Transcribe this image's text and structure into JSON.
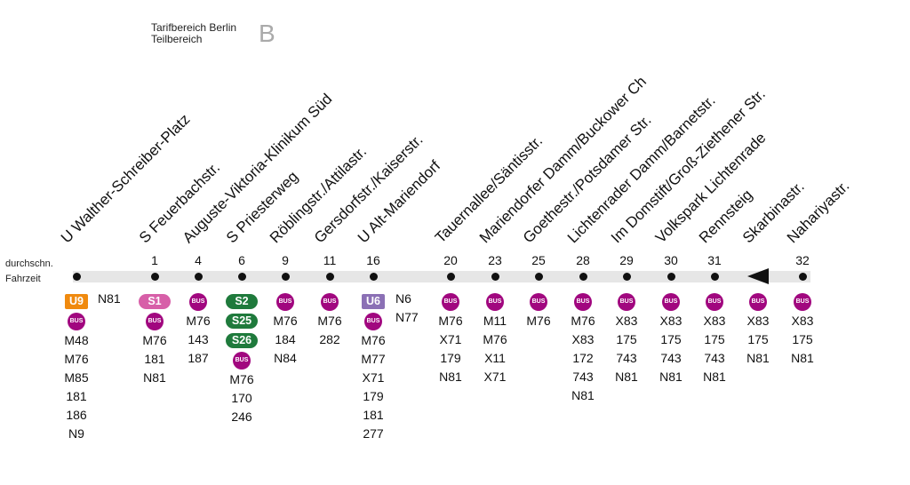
{
  "tariff": {
    "line1": "Tarifbereich Berlin",
    "line2": "Teilbereich",
    "zone": "B"
  },
  "legend": {
    "line1": "durchschn.",
    "line2": "Fahrzeit"
  },
  "stops": [
    {
      "name": "U Walther-Schreiber-Platz",
      "time": "",
      "items": [
        {
          "t": "badge",
          "v": "U9",
          "c": "u9"
        },
        {
          "t": "bus",
          "v": "BUS"
        },
        {
          "t": "line",
          "v": "M48"
        },
        {
          "t": "line",
          "v": "M76"
        },
        {
          "t": "line",
          "v": "M85"
        },
        {
          "t": "line",
          "v": "181"
        },
        {
          "t": "line",
          "v": "186"
        },
        {
          "t": "line",
          "v": "N9"
        }
      ],
      "side": "N81"
    },
    {
      "name": "S Feuerbachstr.",
      "time": "1",
      "items": [
        {
          "t": "badge",
          "v": "S1",
          "c": "s1"
        },
        {
          "t": "bus",
          "v": "BUS"
        },
        {
          "t": "line",
          "v": "M76"
        },
        {
          "t": "line",
          "v": "181"
        },
        {
          "t": "line",
          "v": "N81"
        }
      ]
    },
    {
      "name": "Auguste-Viktoria-Klinikum Süd",
      "time": "4",
      "items": [
        {
          "t": "bus",
          "v": "BUS"
        },
        {
          "t": "line",
          "v": "M76"
        },
        {
          "t": "line",
          "v": "143"
        },
        {
          "t": "line",
          "v": "187"
        }
      ]
    },
    {
      "name": "S Priesterweg",
      "time": "6",
      "items": [
        {
          "t": "badge",
          "v": "S2",
          "c": "s2"
        },
        {
          "t": "badge",
          "v": "S25",
          "c": "s2"
        },
        {
          "t": "badge",
          "v": "S26",
          "c": "s2"
        },
        {
          "t": "bus",
          "v": "BUS"
        },
        {
          "t": "line",
          "v": "M76"
        },
        {
          "t": "line",
          "v": "170"
        },
        {
          "t": "line",
          "v": "246"
        }
      ]
    },
    {
      "name": "Röblingstr./Attilastr.",
      "time": "9",
      "items": [
        {
          "t": "bus",
          "v": "BUS"
        },
        {
          "t": "line",
          "v": "M76"
        },
        {
          "t": "line",
          "v": "184"
        },
        {
          "t": "line",
          "v": "N84"
        }
      ]
    },
    {
      "name": "Gersdorfstr./Kaiserstr.",
      "time": "11",
      "items": [
        {
          "t": "bus",
          "v": "BUS"
        },
        {
          "t": "line",
          "v": "M76"
        },
        {
          "t": "line",
          "v": "282"
        }
      ]
    },
    {
      "name": "U Alt-Mariendorf",
      "time": "16",
      "items": [
        {
          "t": "badge",
          "v": "U6",
          "c": "u6"
        },
        {
          "t": "bus",
          "v": "BUS"
        },
        {
          "t": "line",
          "v": "M76"
        },
        {
          "t": "line",
          "v": "M77"
        },
        {
          "t": "line",
          "v": "X71"
        },
        {
          "t": "line",
          "v": "179"
        },
        {
          "t": "line",
          "v": "181"
        },
        {
          "t": "line",
          "v": "277"
        }
      ],
      "side": "N6\nN77"
    },
    {
      "name": "Tauernallee/Säntisstr.",
      "time": "20",
      "items": [
        {
          "t": "bus",
          "v": "BUS"
        },
        {
          "t": "line",
          "v": "M76"
        },
        {
          "t": "line",
          "v": "X71"
        },
        {
          "t": "line",
          "v": "179"
        },
        {
          "t": "line",
          "v": "N81"
        }
      ]
    },
    {
      "name": "Mariendorfer Damm/Buckower Ch",
      "time": "23",
      "items": [
        {
          "t": "bus",
          "v": "BUS"
        },
        {
          "t": "line",
          "v": "M11"
        },
        {
          "t": "line",
          "v": "M76"
        },
        {
          "t": "line",
          "v": "X11"
        },
        {
          "t": "line",
          "v": "X71"
        }
      ]
    },
    {
      "name": "Goethestr./Potsdamer Str.",
      "time": "25",
      "items": [
        {
          "t": "bus",
          "v": "BUS"
        },
        {
          "t": "line",
          "v": "M76"
        }
      ]
    },
    {
      "name": "Lichtenrader Damm/Barnetstr.",
      "time": "28",
      "items": [
        {
          "t": "bus",
          "v": "BUS"
        },
        {
          "t": "line",
          "v": "M76"
        },
        {
          "t": "line",
          "v": "X83"
        },
        {
          "t": "line",
          "v": "172"
        },
        {
          "t": "line",
          "v": "743"
        },
        {
          "t": "line",
          "v": "N81"
        }
      ]
    },
    {
      "name": "Im Domstift/Groß-Ziethener Str.",
      "time": "29",
      "items": [
        {
          "t": "bus",
          "v": "BUS"
        },
        {
          "t": "line",
          "v": "X83"
        },
        {
          "t": "line",
          "v": "175"
        },
        {
          "t": "line",
          "v": "743"
        },
        {
          "t": "line",
          "v": "N81"
        }
      ]
    },
    {
      "name": "Volkspark Lichtenrade",
      "time": "30",
      "items": [
        {
          "t": "bus",
          "v": "BUS"
        },
        {
          "t": "line",
          "v": "X83"
        },
        {
          "t": "line",
          "v": "175"
        },
        {
          "t": "line",
          "v": "743"
        },
        {
          "t": "line",
          "v": "N81"
        }
      ]
    },
    {
      "name": "Rennsteig",
      "time": "31",
      "items": [
        {
          "t": "bus",
          "v": "BUS"
        },
        {
          "t": "line",
          "v": "X83"
        },
        {
          "t": "line",
          "v": "175"
        },
        {
          "t": "line",
          "v": "743"
        },
        {
          "t": "line",
          "v": "N81"
        }
      ]
    },
    {
      "name": "Skarbinastr.",
      "time": "",
      "items": [
        {
          "t": "bus",
          "v": "BUS"
        },
        {
          "t": "line",
          "v": "X83"
        },
        {
          "t": "line",
          "v": "175"
        },
        {
          "t": "line",
          "v": "N81"
        }
      ]
    },
    {
      "name": "Nahariyastr.",
      "time": "32",
      "items": [
        {
          "t": "bus",
          "v": "BUS"
        },
        {
          "t": "line",
          "v": "X83"
        },
        {
          "t": "line",
          "v": "175"
        },
        {
          "t": "line",
          "v": "N81"
        }
      ]
    }
  ]
}
